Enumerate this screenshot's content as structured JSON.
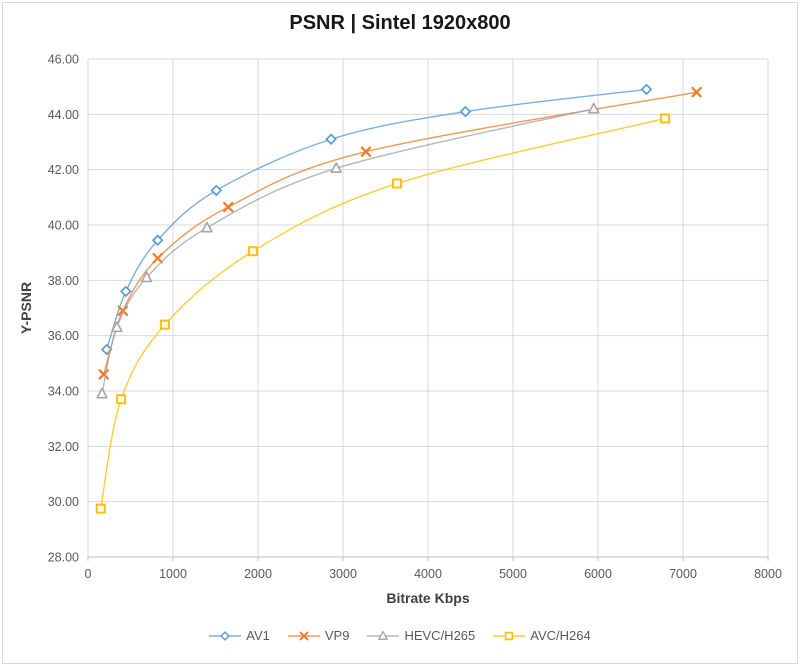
{
  "chart_data": {
    "type": "line",
    "title": "PSNR | Sintel 1920x800",
    "xlabel": "Bitrate Kbps",
    "ylabel": "Y-PSNR",
    "xlim": [
      0,
      8000
    ],
    "ylim": [
      28,
      46
    ],
    "x_ticks": [
      0,
      1000,
      2000,
      3000,
      4000,
      5000,
      6000,
      7000,
      8000
    ],
    "x_tick_labels": [
      "0",
      "1000",
      "2000",
      "3000",
      "4000",
      "5000",
      "6000",
      "7000",
      "8000"
    ],
    "y_ticks": [
      28,
      30,
      32,
      34,
      36,
      38,
      40,
      42,
      44,
      46
    ],
    "y_tick_labels": [
      "28.00",
      "30.00",
      "32.00",
      "34.00",
      "36.00",
      "38.00",
      "40.00",
      "42.00",
      "44.00",
      "46.00"
    ],
    "grid": true,
    "smooth_lines": true,
    "legend_position": "bottom",
    "colors": {
      "gridline": "#D9D9D9",
      "axis_line": "#BFBFBF",
      "tick_label": "#595959",
      "axis_title": "#404040",
      "title": "#171717"
    },
    "series": [
      {
        "name": "AV1",
        "color": "#5B9BD5",
        "marker": "diamond",
        "points": [
          [
            220,
            35.5
          ],
          [
            445,
            37.6
          ],
          [
            820,
            39.45
          ],
          [
            1510,
            41.25
          ],
          [
            2860,
            43.1
          ],
          [
            4440,
            44.1
          ],
          [
            6570,
            44.9
          ]
        ]
      },
      {
        "name": "VP9",
        "color": "#ED7D31",
        "marker": "x",
        "points": [
          [
            185,
            34.6
          ],
          [
            410,
            36.9
          ],
          [
            820,
            38.8
          ],
          [
            1650,
            40.65
          ],
          [
            3270,
            42.65
          ],
          [
            7160,
            44.8
          ]
        ]
      },
      {
        "name": "HEVC/H265",
        "color": "#A5A5A5",
        "marker": "triangle",
        "points": [
          [
            165,
            33.9
          ],
          [
            340,
            36.3
          ],
          [
            690,
            38.1
          ],
          [
            1400,
            39.9
          ],
          [
            2920,
            42.05
          ],
          [
            5950,
            44.2
          ]
        ]
      },
      {
        "name": "AVC/H264",
        "color": "#FFC000",
        "marker": "square",
        "points": [
          [
            150,
            29.75
          ],
          [
            390,
            33.7
          ],
          [
            905,
            36.4
          ],
          [
            1940,
            39.05
          ],
          [
            3635,
            41.5
          ],
          [
            6790,
            43.85
          ]
        ]
      }
    ]
  }
}
